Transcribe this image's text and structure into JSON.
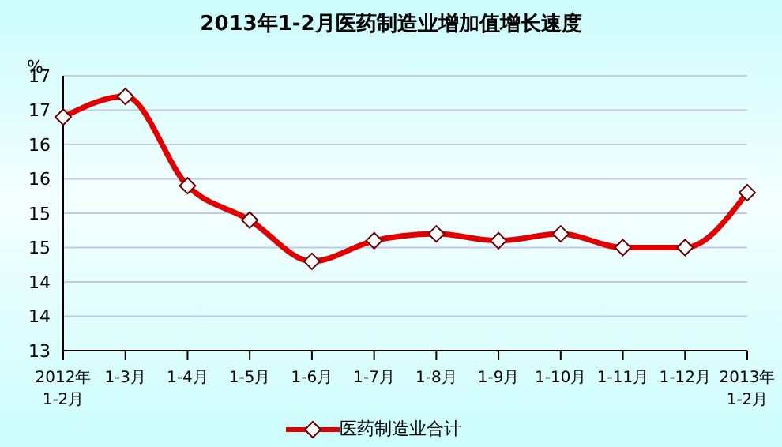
{
  "chart_data": {
    "type": "line",
    "title": "2013年1-2月医药制造业增加值增长速度",
    "ylabel": "%",
    "categories": [
      "2012年\n1-2月",
      "1-3月",
      "1-4月",
      "1-5月",
      "1-6月",
      "1-7月",
      "1-8月",
      "1-9月",
      "1-10月",
      "1-11月",
      "1-12月",
      "2013年\n1-2月"
    ],
    "series": [
      {
        "name": "医药制造业合计",
        "color": "#e00000",
        "values": [
          16.4,
          16.7,
          15.4,
          14.9,
          14.3,
          14.6,
          14.7,
          14.6,
          14.7,
          14.5,
          14.5,
          15.3
        ]
      }
    ],
    "ylim": [
      13,
      17
    ],
    "yticks": [
      13,
      {
        "value": 13.5,
        "label": "14"
      },
      14,
      {
        "value": 14.5,
        "label": "15"
      },
      15,
      {
        "value": 15.5,
        "label": "16"
      },
      16,
      {
        "value": 16.5,
        "label": "17"
      },
      17
    ],
    "grid": "y",
    "legend": "bottom",
    "marker": "diamond",
    "line_style": "solid"
  }
}
